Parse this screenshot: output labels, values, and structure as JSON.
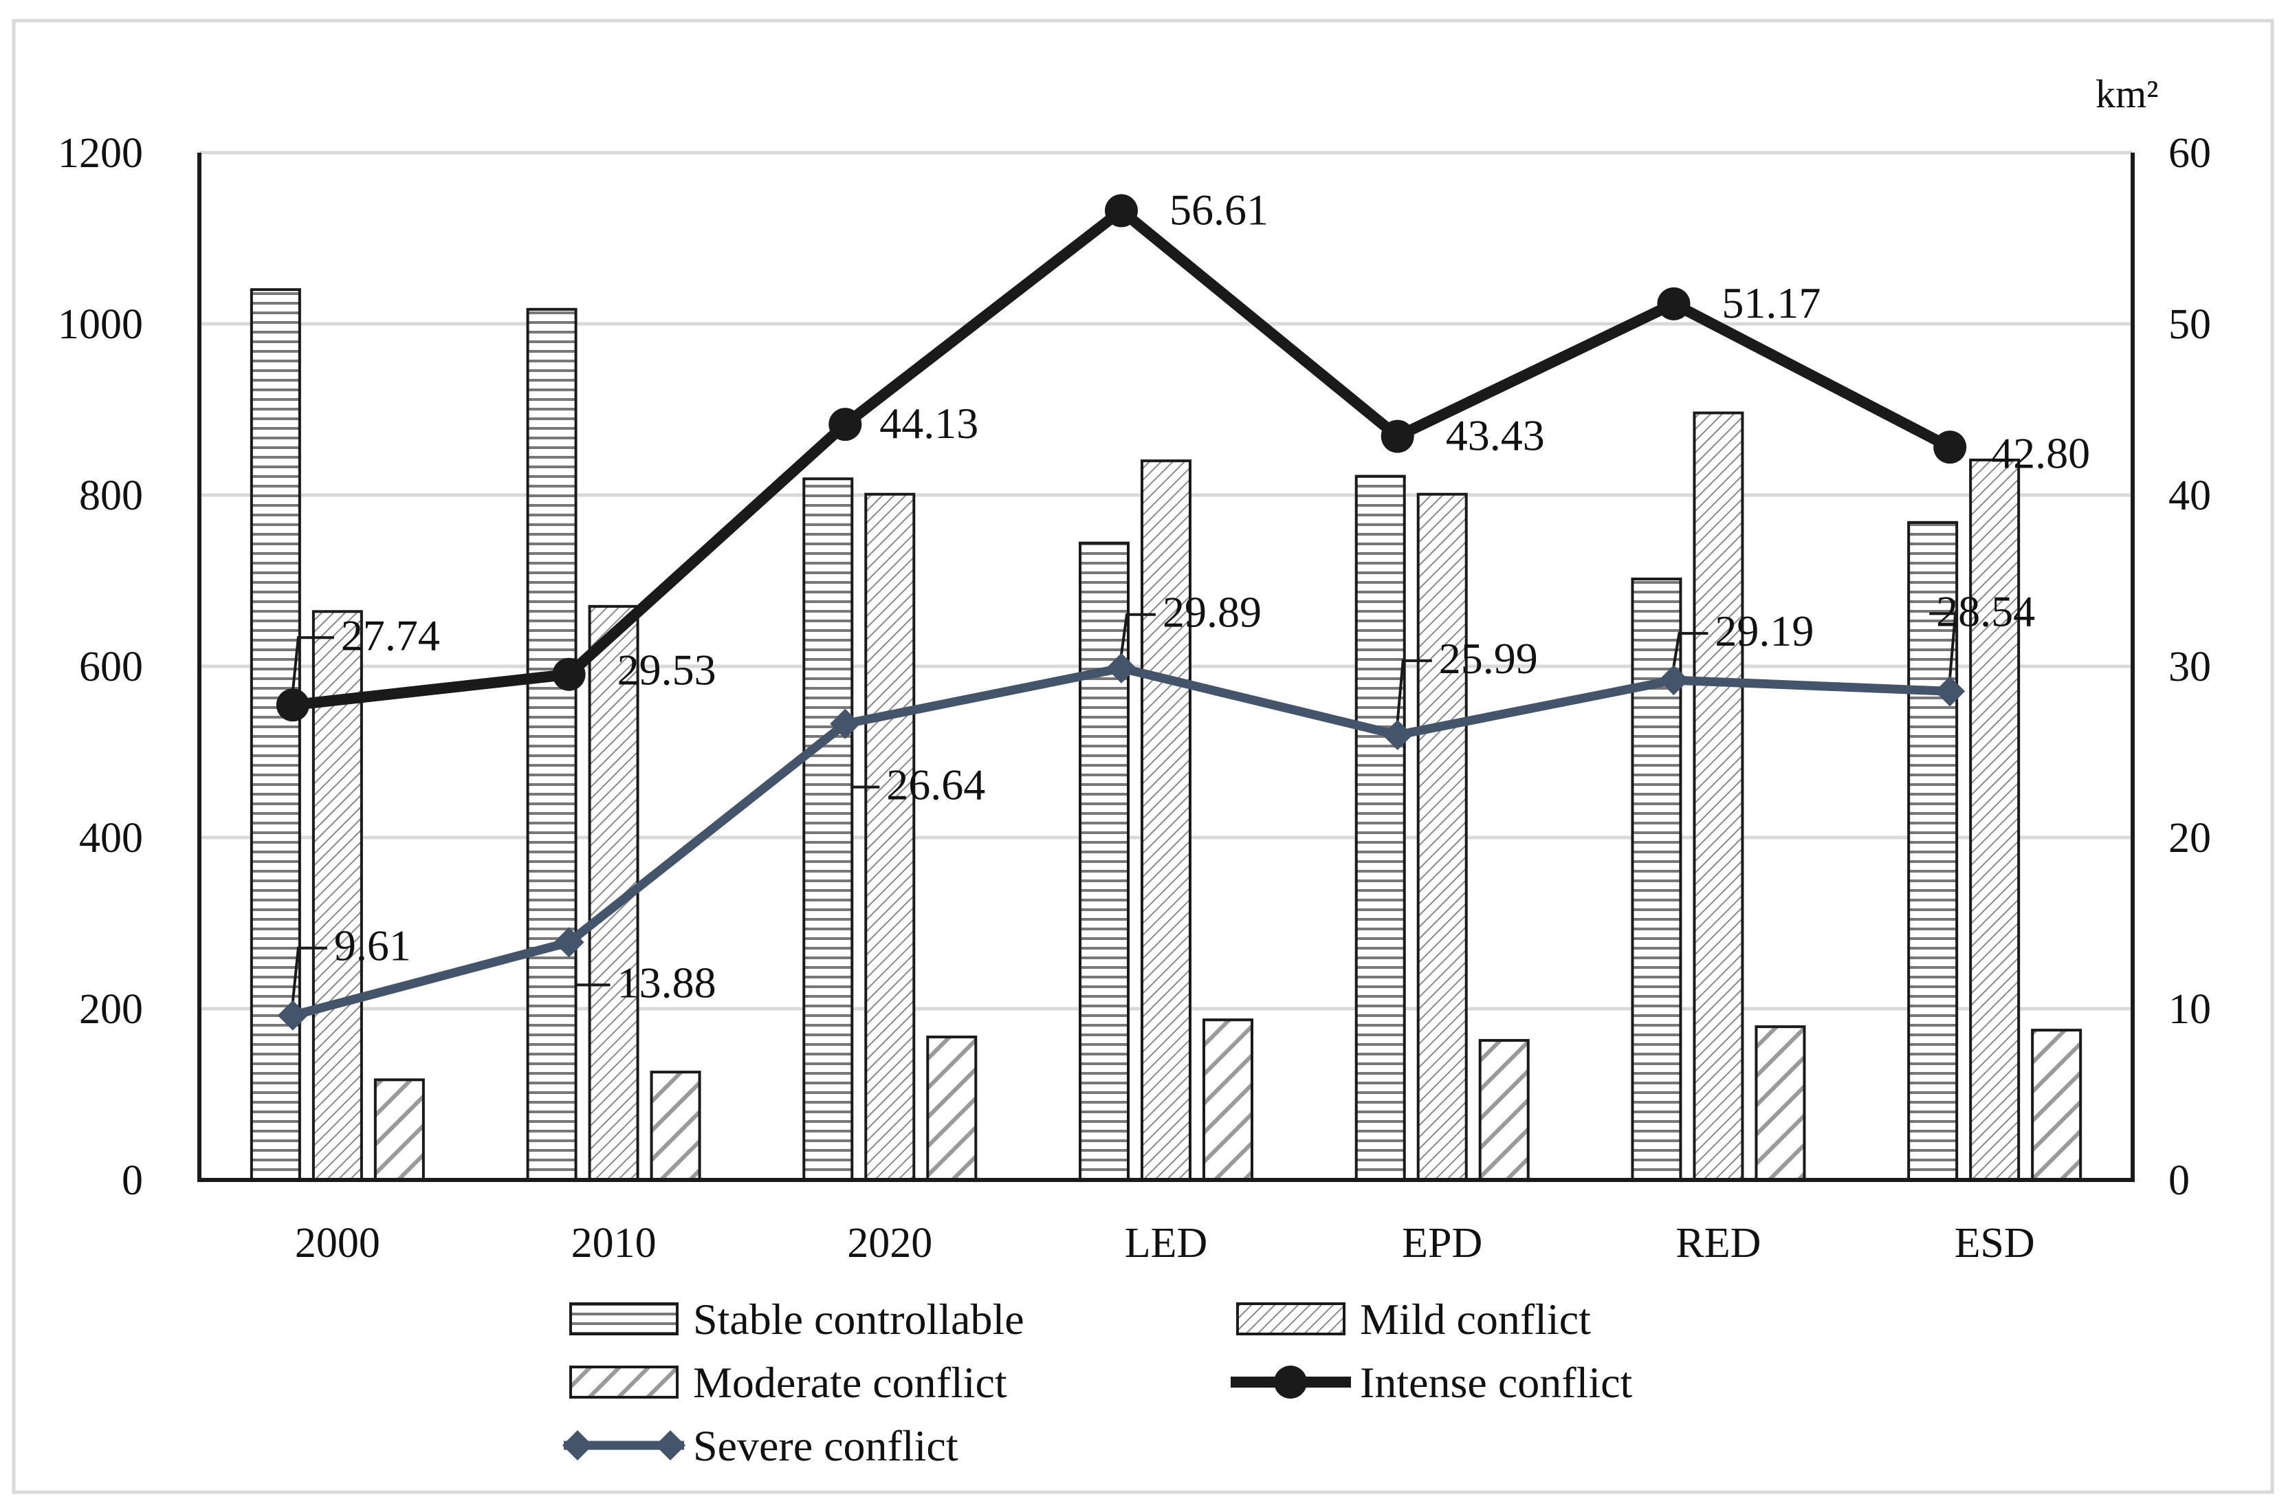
{
  "chart_data": {
    "type": "bar+line",
    "categories": [
      "2000",
      "2010",
      "2020",
      "LED",
      "EPD",
      "RED",
      "ESD"
    ],
    "series": [
      {
        "name": "Stable controllable",
        "type": "bar",
        "axis": "left",
        "pattern": "horizontal-lines",
        "values": [
          1040,
          1017,
          819,
          744,
          822,
          702,
          768
        ]
      },
      {
        "name": "Mild conflict",
        "type": "bar",
        "axis": "left",
        "pattern": "fine-diagonal",
        "values": [
          664,
          670,
          801,
          840,
          801,
          896,
          841
        ]
      },
      {
        "name": "Moderate conflict",
        "type": "bar",
        "axis": "left",
        "pattern": "wide-diagonal",
        "values": [
          117,
          126,
          167,
          187,
          163,
          179,
          175
        ]
      },
      {
        "name": "Intense conflict",
        "type": "line",
        "axis": "right",
        "marker": "circle",
        "color": "#1a1a1a",
        "values": [
          27.74,
          29.53,
          44.13,
          56.61,
          43.43,
          51.17,
          42.8
        ],
        "labels": [
          "27.74",
          "29.53",
          "44.13",
          "56.61",
          "43.43",
          "51.17",
          "42.80"
        ]
      },
      {
        "name": "Severe conflict",
        "type": "line",
        "axis": "right",
        "marker": "diamond",
        "color": "#44546a",
        "values": [
          9.61,
          13.88,
          26.64,
          29.89,
          25.99,
          29.19,
          28.54
        ],
        "labels": [
          "9.61",
          "13.88",
          "26.64",
          "29.89",
          "25.99",
          "29.19",
          "28.54"
        ]
      }
    ],
    "y_left": {
      "min": 0,
      "max": 1200,
      "ticks": [
        "0",
        "200",
        "400",
        "600",
        "800",
        "1000",
        "1200"
      ]
    },
    "y_right": {
      "min": 0,
      "max": 60,
      "ticks": [
        "0",
        "10",
        "20",
        "30",
        "40",
        "50",
        "60"
      ],
      "unit": "km²"
    },
    "grid": true,
    "legend_position": "bottom"
  }
}
